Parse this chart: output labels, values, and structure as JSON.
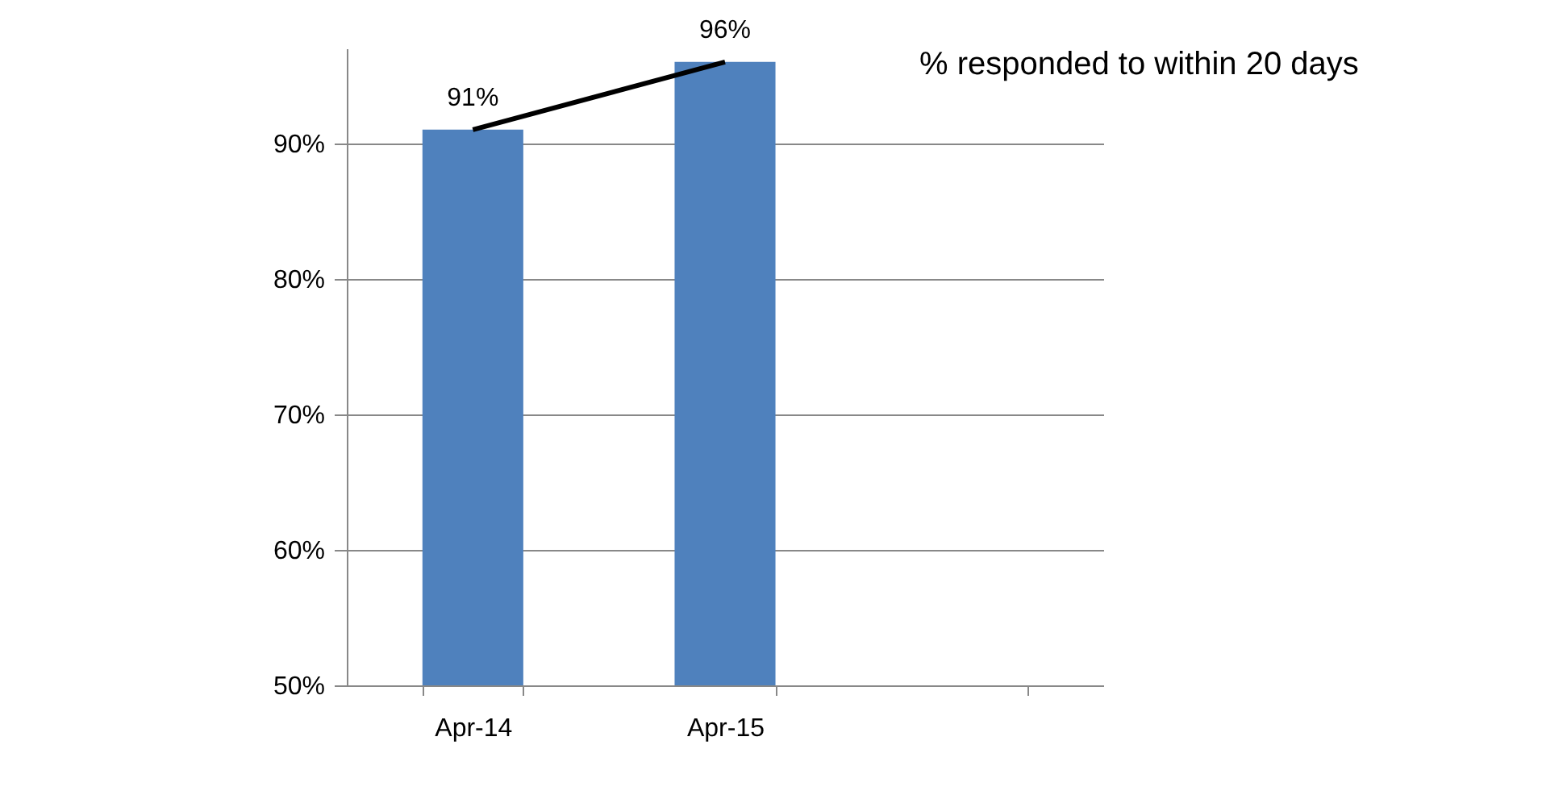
{
  "chart_data": {
    "type": "bar",
    "categories": [
      "Apr-14",
      "Apr-15",
      null
    ],
    "series": [
      {
        "color": "#4f81bd",
        "values": [
          91,
          96,
          null
        ],
        "value_labels": [
          "91%",
          "96%",
          null
        ]
      },
      {
        "type": "line",
        "color": "#000000",
        "values": [
          91,
          96,
          null
        ]
      }
    ],
    "ylim": [
      50,
      97
    ],
    "yticks": [
      {
        "value": 50,
        "label": "50%"
      },
      {
        "value": 60,
        "label": "60%"
      },
      {
        "value": 70,
        "label": "70%"
      },
      {
        "value": 80,
        "label": "80%"
      },
      {
        "value": 90,
        "label": "90%"
      }
    ],
    "grid": "y",
    "annotations": [
      "% responded to within 20 days"
    ]
  }
}
